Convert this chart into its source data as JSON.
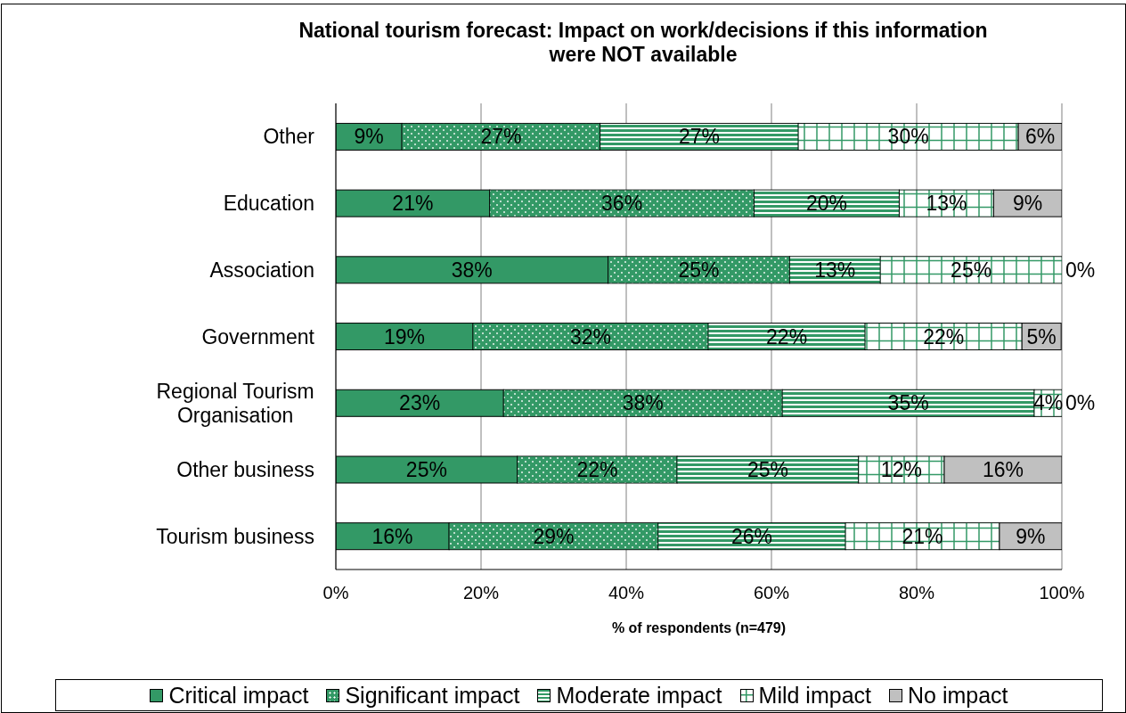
{
  "chart_data": {
    "type": "bar",
    "orientation": "horizontal",
    "stacked": true,
    "title": "National tourism forecast: Impact on work/decisions if this information were NOT available",
    "xlabel": "% of respondents (n=479)",
    "categories": [
      "Other",
      "Education",
      "Association",
      "Government",
      "Regional Tourism Organisation",
      "Other business",
      "Tourism business"
    ],
    "series": [
      {
        "name": "Critical impact",
        "color": "#339966",
        "values": [
          9.1,
          21.2,
          37.5,
          18.9,
          23.1,
          25.0,
          15.6
        ],
        "value_labels": [
          "9%",
          "21%",
          "38%",
          "19%",
          "23%",
          "25%",
          "16%"
        ]
      },
      {
        "name": "Significant impact",
        "color": "#339966",
        "values": [
          27.3,
          36.4,
          25.0,
          32.4,
          38.4,
          22.0,
          28.8
        ],
        "value_labels": [
          "27%",
          "36%",
          "25%",
          "32%",
          "38%",
          "22%",
          "29%"
        ]
      },
      {
        "name": "Moderate impact",
        "color": "#339966",
        "values": [
          27.3,
          20.0,
          12.5,
          21.6,
          34.7,
          25.0,
          25.8
        ],
        "value_labels": [
          "27%",
          "20%",
          "13%",
          "22%",
          "35%",
          "25%",
          "26%"
        ]
      },
      {
        "name": "Mild impact",
        "color": "#339966",
        "values": [
          30.3,
          13.0,
          25.0,
          21.6,
          3.8,
          11.8,
          21.2
        ],
        "value_labels": [
          "30%",
          "13%",
          "25%",
          "22%",
          "4%",
          "12%",
          "21%"
        ]
      },
      {
        "name": "No impact",
        "color": "#c0c0c0",
        "values": [
          6.0,
          9.4,
          0,
          5.4,
          0,
          16.2,
          8.6
        ],
        "value_labels": [
          "6%",
          "9%",
          "0%",
          "5%",
          "0%",
          "16%",
          "9%"
        ]
      }
    ],
    "xlim": [
      0,
      100
    ],
    "xticks": [
      {
        "value": 0,
        "label": "0%"
      },
      {
        "value": 20,
        "label": "20%"
      },
      {
        "value": 40,
        "label": "40%"
      },
      {
        "value": 60,
        "label": "60%"
      },
      {
        "value": 80,
        "label": "80%"
      },
      {
        "value": 100,
        "label": "100%"
      }
    ],
    "grid": "x",
    "legend": "bottom"
  }
}
